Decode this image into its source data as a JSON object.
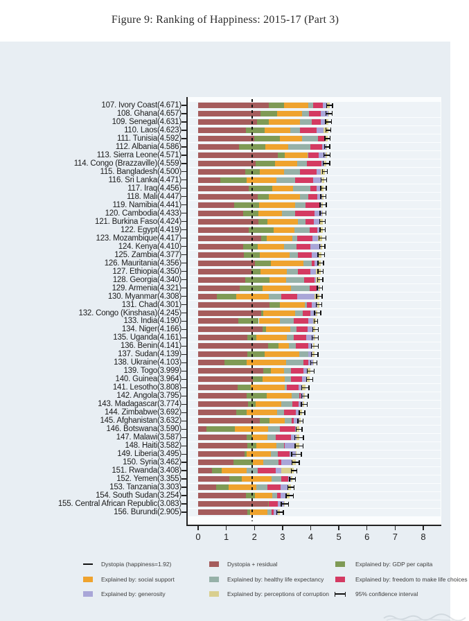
{
  "chart_data": {
    "type": "bar",
    "orientation": "horizontal-stacked",
    "title": "Figure 9: Ranking of Happiness: 2015-17 (Part 3)",
    "xlabel": "",
    "ylabel": "",
    "xlim": [
      0,
      8
    ],
    "x_ticks": [
      0,
      1,
      2,
      3,
      4,
      5,
      6,
      7,
      8
    ],
    "grid": false,
    "dystopia_value": 1.92,
    "stack_order": [
      "dystopia_residual",
      "gdp_per_capita",
      "social_support",
      "healthy_life_expectancy",
      "freedom",
      "generosity",
      "perceptions_of_corruption"
    ],
    "colors": {
      "dystopia_residual": "#a55c5c",
      "gdp_per_capita": "#7f9a55",
      "social_support": "#efa32e",
      "healthy_life_expectancy": "#96b1a8",
      "freedom": "#d43a62",
      "generosity": "#a9a6d8",
      "perceptions_of_corruption": "#d9cf8f",
      "dystopia_line": "#111111",
      "ci": "#111111"
    },
    "countries": [
      {
        "rank": 107,
        "name": "Ivory Coast",
        "score": 4.671,
        "ci": 0.105,
        "values": [
          2.512,
          0.541,
          0.872,
          0.15,
          0.352,
          0.154,
          0.09
        ]
      },
      {
        "rank": 108,
        "name": "Ghana",
        "score": 4.657,
        "ci": 0.11,
        "values": [
          2.209,
          0.592,
          0.899,
          0.24,
          0.424,
          0.258,
          0.035
        ]
      },
      {
        "rank": 109,
        "name": "Senegal",
        "score": 4.631,
        "ci": 0.1,
        "values": [
          2.084,
          0.429,
          1.117,
          0.409,
          0.309,
          0.183,
          0.1
        ]
      },
      {
        "rank": 110,
        "name": "Laos",
        "score": 4.623,
        "ci": 0.09,
        "values": [
          1.687,
          0.672,
          0.927,
          0.338,
          0.591,
          0.242,
          0.166
        ]
      },
      {
        "rank": 111,
        "name": "Tunisia",
        "score": 4.592,
        "ci": 0.09,
        "values": [
          2.004,
          0.891,
          0.791,
          0.571,
          0.24,
          0.03,
          0.065
        ]
      },
      {
        "rank": 112,
        "name": "Albania",
        "score": 4.586,
        "ci": 0.09,
        "values": [
          1.463,
          0.916,
          0.817,
          0.79,
          0.419,
          0.149,
          0.032
        ]
      },
      {
        "rank": 113,
        "name": "Sierra Leone",
        "score": 4.571,
        "ci": 0.11,
        "values": [
          2.822,
          0.256,
          0.813,
          0.034,
          0.355,
          0.238,
          0.053
        ]
      },
      {
        "rank": 114,
        "name": "Congo (Brazzaville)",
        "score": 4.559,
        "ci": 0.12,
        "values": [
          2.039,
          0.682,
          0.811,
          0.343,
          0.514,
          0.093,
          0.077
        ]
      },
      {
        "rank": 115,
        "name": "Bangladesh",
        "score": 4.5,
        "ci": 0.09,
        "values": [
          1.662,
          0.532,
          0.85,
          0.579,
          0.58,
          0.153,
          0.144
        ]
      },
      {
        "rank": 116,
        "name": "Sri Lanka",
        "score": 4.471,
        "ci": 0.1,
        "values": [
          0.796,
          0.918,
          1.056,
          0.68,
          0.631,
          0.313,
          0.077
        ]
      },
      {
        "rank": 117,
        "name": "Iraq",
        "score": 4.456,
        "ci": 0.1,
        "values": [
          1.789,
          0.843,
          0.746,
          0.6,
          0.241,
          0.148,
          0.089
        ]
      },
      {
        "rank": 118,
        "name": "Mali",
        "score": 4.447,
        "ci": 0.09,
        "values": [
          2.122,
          0.385,
          1.1,
          0.308,
          0.327,
          0.153,
          0.052
        ]
      },
      {
        "rank": 119,
        "name": "Namibia",
        "score": 4.441,
        "ci": 0.11,
        "values": [
          1.287,
          0.874,
          1.281,
          0.365,
          0.519,
          0.051,
          0.064
        ]
      },
      {
        "rank": 120,
        "name": "Cambodia",
        "score": 4.433,
        "ci": 0.1,
        "values": [
          1.594,
          0.549,
          0.838,
          0.457,
          0.696,
          0.261,
          0.038
        ]
      },
      {
        "rank": 121,
        "name": "Burkina Faso",
        "score": 4.424,
        "ci": 0.1,
        "values": [
          2.144,
          0.314,
          1.097,
          0.254,
          0.312,
          0.175,
          0.128
        ]
      },
      {
        "rank": 122,
        "name": "Egypt",
        "score": 4.419,
        "ci": 0.09,
        "values": [
          1.795,
          0.886,
          0.75,
          0.521,
          0.283,
          0.083,
          0.101
        ]
      },
      {
        "rank": 123,
        "name": "Mozambique",
        "score": 4.417,
        "ci": 0.12,
        "values": [
          2.249,
          0.198,
          0.902,
          0.173,
          0.531,
          0.206,
          0.158
        ]
      },
      {
        "rank": 124,
        "name": "Kenya",
        "score": 4.41,
        "ci": 0.09,
        "values": [
          1.612,
          0.493,
          0.951,
          0.446,
          0.48,
          0.367,
          0.061
        ]
      },
      {
        "rank": 125,
        "name": "Zambia",
        "score": 4.377,
        "ci": 0.12,
        "values": [
          1.636,
          0.562,
          1.047,
          0.295,
          0.503,
          0.247,
          0.087
        ]
      },
      {
        "rank": 126,
        "name": "Mauritania",
        "score": 4.356,
        "ci": 0.1,
        "values": [
          2.011,
          0.57,
          1.167,
          0.285,
          0.096,
          0.139,
          0.088
        ]
      },
      {
        "rank": 127,
        "name": "Ethiopia",
        "score": 4.35,
        "ci": 0.09,
        "values": [
          1.896,
          0.308,
          0.95,
          0.391,
          0.452,
          0.198,
          0.155
        ]
      },
      {
        "rank": 128,
        "name": "Georgia",
        "score": 4.34,
        "ci": 0.09,
        "values": [
          1.672,
          0.853,
          0.592,
          0.643,
          0.375,
          0.041,
          0.164
        ]
      },
      {
        "rank": 129,
        "name": "Armenia",
        "score": 4.321,
        "ci": 0.09,
        "values": [
          1.484,
          0.816,
          0.99,
          0.666,
          0.26,
          0.077,
          0.028
        ]
      },
      {
        "rank": 130,
        "name": "Myanmar",
        "score": 4.308,
        "ci": 0.1,
        "values": [
          0.667,
          0.682,
          1.174,
          0.429,
          0.58,
          0.598,
          0.178
        ]
      },
      {
        "rank": 131,
        "name": "Chad",
        "score": 4.301,
        "ci": 0.1,
        "values": [
          2.536,
          0.358,
          0.907,
          0.053,
          0.188,
          0.181,
          0.078
        ]
      },
      {
        "rank": 132,
        "name": "Congo (Kinshasa)",
        "score": 4.245,
        "ci": 0.11,
        "values": [
          2.231,
          0.094,
          1.125,
          0.26,
          0.27,
          0.212,
          0.053
        ]
      },
      {
        "rank": 133,
        "name": "India",
        "score": 4.19,
        "ci": 0.06,
        "values": [
          1.433,
          0.721,
          0.747,
          0.485,
          0.539,
          0.172,
          0.093
        ]
      },
      {
        "rank": 134,
        "name": "Niger",
        "score": 4.166,
        "ci": 0.1,
        "values": [
          2.283,
          0.131,
          0.867,
          0.221,
          0.39,
          0.175,
          0.099
        ]
      },
      {
        "rank": 135,
        "name": "Uganda",
        "score": 4.161,
        "ci": 0.11,
        "values": [
          1.743,
          0.322,
          1.09,
          0.237,
          0.45,
          0.259,
          0.06
        ]
      },
      {
        "rank": 136,
        "name": "Benin",
        "score": 4.141,
        "ci": 0.12,
        "values": [
          2.481,
          0.378,
          0.372,
          0.24,
          0.44,
          0.163,
          0.067
        ]
      },
      {
        "rank": 137,
        "name": "Sudan",
        "score": 4.139,
        "ci": 0.12,
        "values": [
          1.75,
          0.605,
          1.24,
          0.312,
          0.016,
          0.134,
          0.082
        ]
      },
      {
        "rank": 138,
        "name": "Ukraine",
        "score": 4.103,
        "ci": 0.11,
        "values": [
          0.927,
          0.793,
          1.413,
          0.609,
          0.163,
          0.187,
          0.011
        ]
      },
      {
        "rank": 139,
        "name": "Togo",
        "score": 3.999,
        "ci": 0.12,
        "values": [
          2.32,
          0.259,
          0.474,
          0.253,
          0.434,
          0.158,
          0.101
        ]
      },
      {
        "rank": 140,
        "name": "Guinea",
        "score": 3.964,
        "ci": 0.11,
        "values": [
          1.944,
          0.344,
          0.792,
          0.211,
          0.394,
          0.185,
          0.094
        ]
      },
      {
        "rank": 141,
        "name": "Lesotho",
        "score": 3.808,
        "ci": 0.13,
        "values": [
          1.391,
          0.472,
          1.215,
          0.079,
          0.423,
          0.116,
          0.112
        ]
      },
      {
        "rank": 142,
        "name": "Angola",
        "score": 3.795,
        "ci": 0.12,
        "values": [
          1.714,
          0.73,
          0.879,
          0.267,
          0.05,
          0.094,
          0.061
        ]
      },
      {
        "rank": 143,
        "name": "Madagascar",
        "score": 3.774,
        "ci": 0.11,
        "values": [
          1.777,
          0.262,
          0.908,
          0.402,
          0.221,
          0.155,
          0.049
        ]
      },
      {
        "rank": 144,
        "name": "Zimbabwe",
        "score": 3.692,
        "ci": 0.1,
        "values": [
          1.356,
          0.357,
          1.094,
          0.248,
          0.406,
          0.132,
          0.099
        ]
      },
      {
        "rank": 145,
        "name": "Afghanistan",
        "score": 3.632,
        "ci": 0.09,
        "values": [
          2.196,
          0.332,
          0.537,
          0.255,
          0.085,
          0.191,
          0.036
        ]
      },
      {
        "rank": 146,
        "name": "Botswana",
        "score": 3.59,
        "ci": 0.1,
        "values": [
          0.291,
          1.017,
          1.174,
          0.417,
          0.557,
          0.042,
          0.092
        ]
      },
      {
        "rank": 147,
        "name": "Malawi",
        "score": 3.587,
        "ci": 0.15,
        "values": [
          1.733,
          0.186,
          0.541,
          0.306,
          0.531,
          0.21,
          0.08
        ]
      },
      {
        "rank": 148,
        "name": "Haiti",
        "score": 3.582,
        "ci": 0.14,
        "values": [
          1.743,
          0.315,
          0.714,
          0.289,
          0.025,
          0.392,
          0.104
        ]
      },
      {
        "rank": 149,
        "name": "Liberia",
        "score": 3.495,
        "ci": 0.17,
        "values": [
          1.639,
          0.076,
          0.858,
          0.267,
          0.419,
          0.206,
          0.03
        ]
      },
      {
        "rank": 150,
        "name": "Syria",
        "score": 3.462,
        "ci": 0.13,
        "values": [
          1.244,
          0.689,
          0.382,
          0.539,
          0.088,
          0.376,
          0.144
        ]
      },
      {
        "rank": 151,
        "name": "Rwanda",
        "score": 3.408,
        "ci": 0.1,
        "values": [
          0.5,
          0.332,
          0.896,
          0.4,
          0.636,
          0.2,
          0.444
        ]
      },
      {
        "rank": 152,
        "name": "Yemen",
        "score": 3.355,
        "ci": 0.11,
        "values": [
          1.106,
          0.442,
          1.073,
          0.343,
          0.244,
          0.083,
          0.064
        ]
      },
      {
        "rank": 153,
        "name": "Tanzania",
        "score": 3.303,
        "ci": 0.11,
        "values": [
          0.628,
          0.455,
          0.991,
          0.381,
          0.481,
          0.27,
          0.097
        ]
      },
      {
        "rank": 154,
        "name": "South Sudan",
        "score": 3.254,
        "ci": 0.13,
        "values": [
          1.69,
          0.337,
          0.608,
          0.177,
          0.112,
          0.224,
          0.106
        ]
      },
      {
        "rank": 155,
        "name": "Central African Republic",
        "score": 3.083,
        "ci": 0.13,
        "values": [
          2.488,
          0.024,
          0.0,
          0.01,
          0.305,
          0.218,
          0.038
        ]
      },
      {
        "rank": 156,
        "name": "Burundi",
        "score": 2.905,
        "ci": 0.12,
        "values": [
          1.752,
          0.091,
          0.627,
          0.145,
          0.065,
          0.149,
          0.076
        ]
      }
    ]
  },
  "legend": {
    "columns": [
      {
        "items": [
          {
            "symbol": "line",
            "label": "Dystopia (happiness=1.92)"
          },
          {
            "symbol": "swatch",
            "key": "social_support",
            "label": "Explained by: social support"
          },
          {
            "symbol": "swatch",
            "key": "generosity",
            "label": "Explained by: generosity"
          }
        ]
      },
      {
        "items": [
          {
            "symbol": "swatch",
            "key": "dystopia_residual",
            "label": "Dystopia + residual"
          },
          {
            "symbol": "swatch",
            "key": "healthy_life_expectancy",
            "label": "Explained by: healthy life expectancy"
          },
          {
            "symbol": "swatch",
            "key": "perceptions_of_corruption",
            "label": "Explained by: perceptions of corruption"
          }
        ]
      },
      {
        "items": [
          {
            "symbol": "swatch",
            "key": "gdp_per_capita",
            "label": "Explained by: GDP per capita"
          },
          {
            "symbol": "swatch",
            "key": "freedom",
            "label": "Explained by: freedom to make life choices"
          },
          {
            "symbol": "errorbar",
            "label": "95% confidence interval"
          }
        ]
      }
    ]
  }
}
